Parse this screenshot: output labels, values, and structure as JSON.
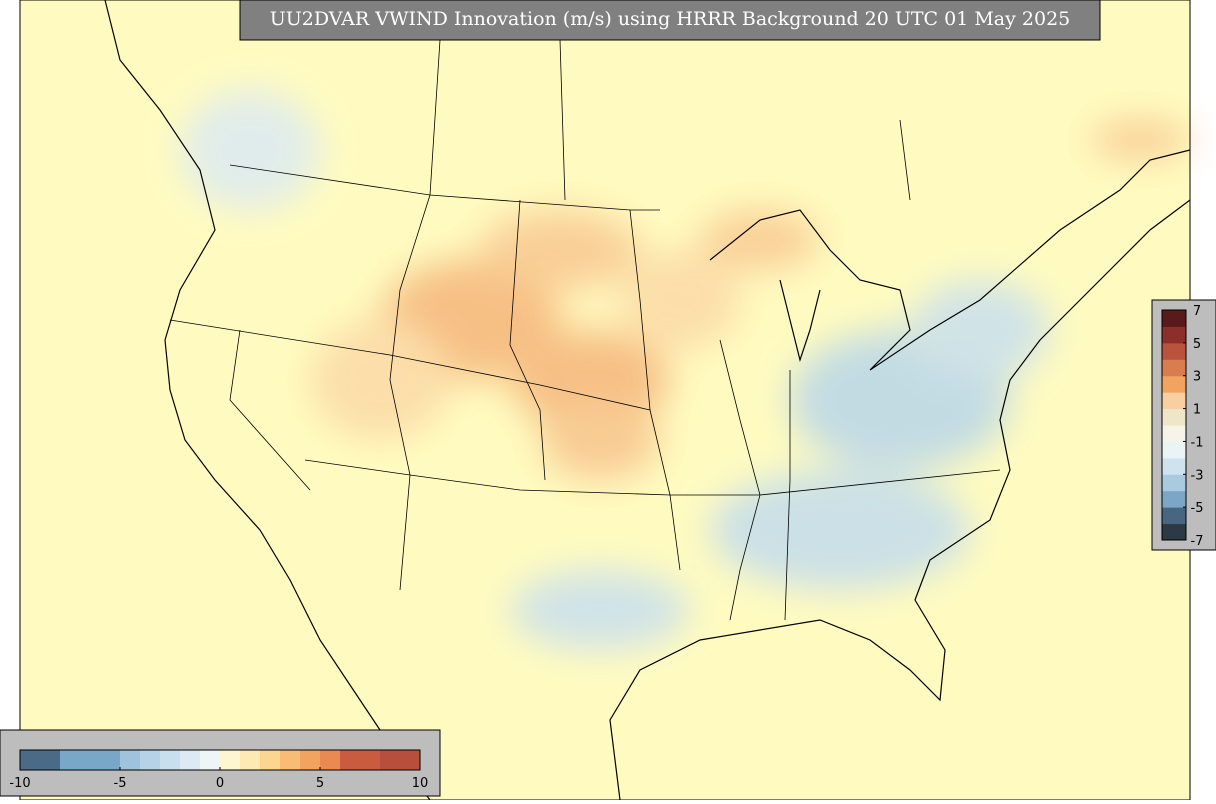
{
  "title": "UU2DVAR VWIND Innovation (m/s) using HRRR Background 20 UTC 01 May 2025",
  "bottom_colorbar": {
    "lim": [
      -10,
      10
    ],
    "ticks": [
      -10,
      -5,
      0,
      5,
      10
    ],
    "colors": [
      "#4a6a88",
      "#4a6a88",
      "#78a7c8",
      "#78a7c8",
      "#78a7c8",
      "#9fc3dc",
      "#b5d3e6",
      "#c8dfee",
      "#dbeaf3",
      "#eef5f7",
      "#fdf6d0",
      "#fde9b3",
      "#fcd590",
      "#f8bc74",
      "#f3a360",
      "#ea8a52",
      "#c95b3f",
      "#c95b3f",
      "#b84f3d",
      "#b84f3d"
    ]
  },
  "right_colorbar": {
    "lim": [
      -7,
      7
    ],
    "ticks": [
      7,
      5,
      3,
      1,
      -1,
      -3,
      -5,
      -7
    ],
    "colors": [
      "#2b3a44",
      "#496680",
      "#7ba6c6",
      "#a9cbe1",
      "#cfe3ef",
      "#eaf3f6",
      "#f6f4ea",
      "#efe6c8",
      "#f7cfa0",
      "#f3a360",
      "#d97c50",
      "#b9533e",
      "#8c2e2a",
      "#5a1a1c"
    ]
  }
}
